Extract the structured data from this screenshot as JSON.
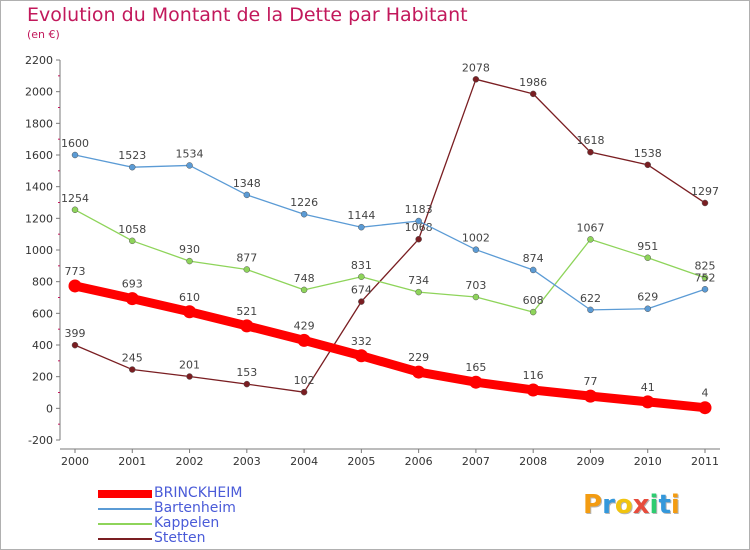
{
  "title": "Evolution du Montant de la Dette par Habitant",
  "subtitle": "(en €)",
  "logo": {
    "letters": [
      "P",
      "r",
      "o",
      "x",
      "i",
      "t",
      "i"
    ],
    "colors": [
      "#f39c12",
      "#3498db",
      "#f1c40f",
      "#e74c3c",
      "#2ecc71",
      "#3498db",
      "#f39c12"
    ]
  },
  "chart_data": {
    "type": "line",
    "title": "Evolution du Montant de la Dette par Habitant",
    "subtitle": "(en €)",
    "xlabel": "",
    "ylabel": "",
    "ylim": [
      -200,
      2200
    ],
    "grid": false,
    "legend": "bottom-left",
    "x": [
      "2000",
      "2001",
      "2002",
      "2003",
      "2004",
      "2005",
      "2006",
      "2007",
      "2008",
      "2009",
      "2010",
      "2011"
    ],
    "yticks": [
      "2200",
      "2000",
      "1800",
      "1600",
      "1400",
      "1200",
      "1000",
      "800",
      "600",
      "400",
      "200",
      "0",
      "-200"
    ],
    "series": [
      {
        "name": "Stetten",
        "color": "#7a1e22",
        "values": [
          399,
          245,
          201,
          153,
          102,
          674,
          1068,
          2078,
          1986,
          1618,
          1538,
          1297
        ],
        "labels": [
          "399",
          "245",
          "201",
          "153",
          "102",
          "674",
          "1068",
          "2078",
          "1986",
          "1618",
          "1538",
          "1297"
        ]
      },
      {
        "name": "Kappelen",
        "color": "#8ed45a",
        "values": [
          1254,
          1058,
          930,
          877,
          748,
          831,
          734,
          703,
          608,
          1067,
          951,
          825
        ],
        "labels": [
          "1254",
          "1058",
          "930",
          "877",
          "748",
          "831",
          "734",
          "703",
          "608",
          "1067",
          "951",
          "825"
        ]
      },
      {
        "name": "Bartenheim",
        "color": "#5b9bd5",
        "values": [
          1600,
          1523,
          1534,
          1348,
          1226,
          1144,
          1183,
          1002,
          874,
          622,
          629,
          752
        ],
        "labels": [
          "1600",
          "1523",
          "1534",
          "1348",
          "1226",
          "1144",
          "1183",
          "1002",
          "874",
          "622",
          "629",
          "752"
        ]
      },
      {
        "name": "BRINCKHEIM",
        "color": "#ff0000",
        "values": [
          773,
          693,
          610,
          521,
          429,
          332,
          229,
          165,
          116,
          77,
          41,
          4
        ],
        "labels": [
          "773",
          "693",
          "610",
          "521",
          "429",
          "332",
          "229",
          "165",
          "116",
          "77",
          "41",
          "4"
        ]
      }
    ],
    "legend_order": [
      "BRINCKHEIM",
      "Bartenheim",
      "Kappelen",
      "Stetten"
    ]
  }
}
